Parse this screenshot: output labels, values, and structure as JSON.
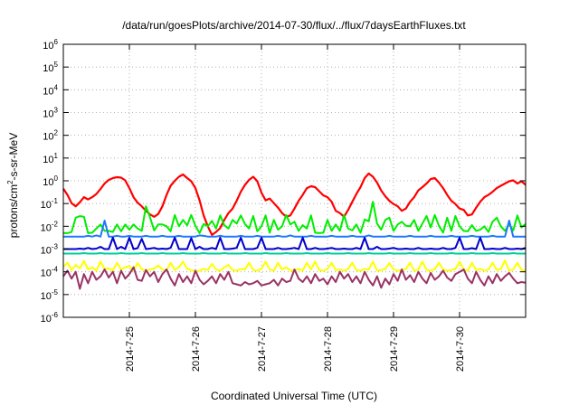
{
  "chart_data": {
    "type": "line",
    "title": "/data/run/goesPlots/archive/2014-07-30/flux/../flux/7daysEarthFluxes.txt",
    "xlabel": "Coordinated Universal Time (UTC)",
    "ylabel_main": "protons/cm",
    "ylabel_sup": "2",
    "ylabel_rest": "-s-sr-MeV",
    "y_scale": "log",
    "ylim": [
      1e-06,
      1000000.0
    ],
    "y_ticks": [
      {
        "base": "10",
        "exp": "-6",
        "v": -6
      },
      {
        "base": "10",
        "exp": "-5",
        "v": -5
      },
      {
        "base": "10",
        "exp": "-4",
        "v": -4
      },
      {
        "base": "10",
        "exp": "-3",
        "v": -3
      },
      {
        "base": "10",
        "exp": "-2",
        "v": -2
      },
      {
        "base": "10",
        "exp": "-1",
        "v": -1
      },
      {
        "base": "10",
        "exp": "0",
        "v": 0
      },
      {
        "base": "10",
        "exp": "1",
        "v": 1
      },
      {
        "base": "10",
        "exp": "2",
        "v": 2
      },
      {
        "base": "10",
        "exp": "3",
        "v": 3
      },
      {
        "base": "10",
        "exp": "4",
        "v": 4
      },
      {
        "base": "10",
        "exp": "5",
        "v": 5
      },
      {
        "base": "10",
        "exp": "6",
        "v": 6
      }
    ],
    "xlim_days": [
      0,
      7
    ],
    "x_ticks": [
      {
        "label": "2014-7-25",
        "d": 1
      },
      {
        "label": "2014-7-26",
        "d": 2
      },
      {
        "label": "2014-7-27",
        "d": 3
      },
      {
        "label": "2014-7-28",
        "d": 4
      },
      {
        "label": "2014-7-29",
        "d": 5
      },
      {
        "label": "2014-7-30",
        "d": 6
      }
    ],
    "grid": true,
    "series": [
      {
        "color": "#ff0000",
        "pattern": "smooth",
        "values": [
          -0.35,
          -0.62,
          -0.98,
          -1.12,
          -0.94,
          -0.72,
          -0.82,
          -0.72,
          -0.58,
          -0.36,
          -0.12,
          0.04,
          0.12,
          0.16,
          0.14,
          0.02,
          -0.32,
          -0.72,
          -0.96,
          -1.12,
          -1.32,
          -1.48,
          -1.58,
          -1.46,
          -1.12,
          -0.62,
          -0.22,
          0.0,
          0.18,
          0.28,
          0.12,
          -0.02,
          -0.32,
          -0.86,
          -1.52,
          -2.0,
          -2.38,
          -2.25,
          -2.08,
          -1.72,
          -1.42,
          -1.22,
          -0.88,
          -0.48,
          -0.18,
          0.04,
          0.18,
          -0.02,
          -0.52,
          -0.86,
          -0.78,
          -0.98,
          -1.18,
          -1.42,
          -1.58,
          -1.52,
          -1.22,
          -0.88,
          -0.62,
          -0.32,
          -0.24,
          -0.28,
          -0.46,
          -0.64,
          -0.72,
          -0.92,
          -1.32,
          -1.42,
          -1.58,
          -1.28,
          -0.92,
          -0.58,
          -0.28,
          0.12,
          0.32,
          0.18,
          -0.08,
          -0.42,
          -0.68,
          -0.88,
          -1.02,
          -1.12,
          -1.32,
          -1.22,
          -0.92,
          -0.72,
          -0.42,
          -0.28,
          -0.12,
          0.08,
          0.12,
          -0.08,
          -0.32,
          -0.62,
          -0.88,
          -1.02,
          -1.22,
          -1.28,
          -1.52,
          -1.48,
          -1.18,
          -0.92,
          -0.72,
          -0.62,
          -0.48,
          -0.32,
          -0.22,
          -0.12,
          -0.02,
          0.02,
          -0.12,
          -0.02,
          -0.18
        ]
      },
      {
        "color": "#00ee00",
        "pattern": "spiky",
        "values": [
          -2.3,
          -2.3,
          -2.25,
          -1.62,
          -1.55,
          -1.58,
          -2.3,
          -2.28,
          -2.1,
          -1.92,
          -2.2,
          -2.2,
          -2.25,
          -1.92,
          -2.22,
          -1.92,
          -2.15,
          -1.92,
          -2.1,
          -2.2,
          -1.12,
          -1.6,
          -2.18,
          -1.92,
          -1.92,
          -2.0,
          -2.22,
          -1.5,
          -2.0,
          -1.72,
          -1.96,
          -1.5,
          -1.98,
          -2.3,
          -1.9,
          -2.0,
          -1.76,
          -2.1,
          -1.52,
          -1.95,
          -2.1,
          -1.72,
          -1.88,
          -1.52,
          -1.9,
          -2.1,
          -1.55,
          -2.22,
          -2.0,
          -1.52,
          -2.28,
          -1.72,
          -2.15,
          -2.0,
          -1.5,
          -1.92,
          -1.8,
          -2.2,
          -1.95,
          -2.1,
          -1.52,
          -2.28,
          -2.3,
          -2.28,
          -1.72,
          -2.2,
          -1.92,
          -2.2,
          -1.5,
          -2.1,
          -2.18,
          -1.92,
          -2.28,
          -1.7,
          -1.78,
          -0.92,
          -1.88,
          -2.15,
          -1.72,
          -1.62,
          -2.2,
          -1.92,
          -1.8,
          -1.98,
          -2.0,
          -1.72,
          -2.2,
          -1.88,
          -1.55,
          -2.05,
          -1.5,
          -1.98,
          -2.28,
          -1.62,
          -2.2,
          -1.55,
          -2.0,
          -2.2,
          -2.22,
          -1.95,
          -2.2,
          -2.15,
          -2.0,
          -2.25,
          -1.8,
          -1.62,
          -2.0,
          -2.2,
          -1.9,
          -2.18,
          -1.52,
          -2.05,
          -1.9
        ]
      },
      {
        "color": "#1e78ff",
        "pattern": "flat",
        "values": [
          -2.45,
          -2.45,
          -2.45,
          -2.45,
          -2.45,
          -2.45,
          -2.42,
          -2.45,
          -2.4,
          -2.45,
          -1.75,
          -2.45,
          -2.45,
          -2.42,
          -2.45,
          -2.45,
          -2.42,
          -2.45,
          -2.45,
          -2.45,
          -2.42,
          -2.45,
          -2.45,
          -2.45,
          -2.42,
          -2.45,
          -2.45,
          -2.45,
          -2.42,
          -2.45,
          -2.45,
          -2.45,
          -2.45,
          -2.4,
          -2.42,
          -2.45,
          -2.45,
          -2.45,
          -2.42,
          -2.45,
          -2.45,
          -2.45,
          -2.45,
          -2.42,
          -2.45,
          -2.45,
          -2.45,
          -2.42,
          -2.45,
          -2.45,
          -2.45,
          -2.45,
          -2.42,
          -2.45,
          -2.45,
          -2.4,
          -2.45,
          -2.45,
          -2.45,
          -2.45,
          -2.42,
          -2.45,
          -2.45,
          -2.45,
          -2.45,
          -2.42,
          -2.45,
          -2.45,
          -2.45,
          -2.45,
          -2.42,
          -2.45,
          -2.45,
          -2.45,
          -2.4,
          -2.45,
          -2.45,
          -2.45,
          -2.45,
          -2.42,
          -2.45,
          -2.45,
          -2.45,
          -2.45,
          -2.42,
          -2.45,
          -2.45,
          -2.45,
          -2.45,
          -2.42,
          -2.45,
          -2.45,
          -2.45,
          -2.45,
          -2.42,
          -2.45,
          -2.45,
          -2.45,
          -2.45,
          -2.42,
          -2.45,
          -2.45,
          -2.45,
          -2.45,
          -2.42,
          -2.45,
          -2.45,
          -2.45,
          -1.75,
          -2.45,
          -2.45,
          -2.45,
          -2.45
        ]
      },
      {
        "color": "#0000cc",
        "pattern": "spiky",
        "values": [
          -3.0,
          -3.0,
          -3.0,
          -3.0,
          -2.98,
          -3.0,
          -2.95,
          -3.0,
          -2.98,
          -2.9,
          -3.0,
          -3.0,
          -2.5,
          -3.0,
          -2.9,
          -3.0,
          -2.5,
          -3.0,
          -2.96,
          -2.55,
          -3.0,
          -2.98,
          -2.95,
          -3.0,
          -2.98,
          -3.0,
          -2.95,
          -2.5,
          -3.0,
          -3.0,
          -3.0,
          -2.52,
          -3.0,
          -2.9,
          -3.0,
          -3.0,
          -2.95,
          -3.0,
          -2.5,
          -3.0,
          -3.0,
          -2.98,
          -2.95,
          -2.5,
          -3.0,
          -3.0,
          -3.0,
          -2.95,
          -2.5,
          -3.0,
          -3.0,
          -3.0,
          -2.95,
          -3.0,
          -3.0,
          -2.98,
          -2.95,
          -3.0,
          -2.5,
          -3.0,
          -3.0,
          -2.95,
          -3.0,
          -3.0,
          -2.98,
          -2.95,
          -3.0,
          -3.0,
          -2.98,
          -3.0,
          -3.0,
          -2.95,
          -3.0,
          -2.5,
          -3.0,
          -3.0,
          -2.9,
          -3.0,
          -3.0,
          -2.98,
          -2.95,
          -3.0,
          -3.0,
          -2.98,
          -3.0,
          -3.0,
          -2.95,
          -3.0,
          -3.0,
          -2.98,
          -3.0,
          -3.0,
          -2.95,
          -3.0,
          -3.0,
          -2.95,
          -2.5,
          -3.0,
          -3.0,
          -2.96,
          -3.0,
          -2.5,
          -3.0,
          -3.0,
          -2.98,
          -3.0,
          -3.0,
          -2.95,
          -3.0,
          -3.0,
          -2.98,
          -3.0,
          -2.95
        ]
      },
      {
        "color": "#00cc99",
        "pattern": "flat",
        "values": [
          -3.2,
          -3.2,
          -3.2,
          -3.2,
          -3.2,
          -3.18,
          -3.2,
          -3.2,
          -3.2,
          -3.18,
          -3.2,
          -3.2,
          -3.2,
          -3.2,
          -3.18,
          -3.2,
          -3.2,
          -3.2,
          -3.2,
          -3.18,
          -3.2,
          -3.2,
          -3.2,
          -3.2,
          -3.18,
          -3.2,
          -3.2,
          -3.2,
          -3.2,
          -3.18,
          -3.2,
          -3.2,
          -3.2,
          -3.2,
          -3.18,
          -3.2,
          -3.2,
          -3.2,
          -3.2,
          -3.18,
          -3.2,
          -3.2,
          -3.2,
          -3.2,
          -3.18,
          -3.2,
          -3.2,
          -3.2,
          -3.2,
          -3.18,
          -3.2,
          -3.2,
          -3.2,
          -3.2,
          -3.18,
          -3.2,
          -3.2,
          -3.2,
          -3.2,
          -3.18,
          -3.2,
          -3.2,
          -3.2,
          -3.2,
          -3.18,
          -3.2,
          -3.2,
          -3.2,
          -3.2,
          -3.18,
          -3.2,
          -3.2,
          -3.2,
          -3.2,
          -3.18,
          -3.2,
          -3.2,
          -3.2,
          -3.2,
          -3.18,
          -3.2,
          -3.2,
          -3.2,
          -3.2,
          -3.18,
          -3.2,
          -3.2,
          -3.2,
          -3.2,
          -3.18,
          -3.2,
          -3.2,
          -3.2,
          -3.2,
          -3.18,
          -3.2,
          -3.2,
          -3.2,
          -3.2,
          -3.18,
          -3.2,
          -3.2,
          -3.2,
          -3.2,
          -3.18,
          -3.2,
          -3.2,
          -3.2,
          -3.2,
          -3.18,
          -3.2,
          -3.2,
          -3.2
        ]
      },
      {
        "color": "#ffff00",
        "pattern": "spiky",
        "values": [
          -3.78,
          -3.6,
          -3.92,
          -3.7,
          -3.85,
          -3.52,
          -3.9,
          -3.8,
          -3.95,
          -3.55,
          -3.88,
          -3.85,
          -3.95,
          -3.6,
          -3.9,
          -3.8,
          -3.75,
          -3.95,
          -3.62,
          -3.88,
          -3.95,
          -3.9,
          -3.85,
          -3.72,
          -3.9,
          -3.95,
          -3.6,
          -3.92,
          -3.8,
          -3.55,
          -3.88,
          -3.92,
          -3.98,
          -3.95,
          -3.88,
          -3.92,
          -3.65,
          -3.9,
          -3.95,
          -3.8,
          -3.7,
          -3.92,
          -3.95,
          -3.88,
          -3.9,
          -3.6,
          -3.92,
          -3.95,
          -3.88,
          -3.55,
          -3.9,
          -3.95,
          -3.6,
          -3.9,
          -3.8,
          -3.95,
          -3.92,
          -3.88,
          -3.95,
          -3.6,
          -3.9,
          -3.55,
          -3.92,
          -3.95,
          -3.88,
          -3.6,
          -3.92,
          -3.9,
          -3.95,
          -3.88,
          -3.6,
          -3.92,
          -3.95,
          -3.88,
          -3.9,
          -3.55,
          -3.95,
          -3.92,
          -3.88,
          -3.62,
          -3.9,
          -3.95,
          -3.92,
          -3.88,
          -3.6,
          -3.95,
          -3.9,
          -3.55,
          -3.92,
          -3.95,
          -3.88,
          -3.6,
          -3.9,
          -3.95,
          -3.92,
          -3.88,
          -3.55,
          -3.9,
          -3.95,
          -3.6,
          -3.92,
          -3.88,
          -3.95,
          -3.9,
          -3.6,
          -3.92,
          -3.88,
          -3.5,
          -3.95,
          -3.9,
          -3.6,
          -3.92,
          -3.95
        ]
      },
      {
        "color": "#993366",
        "pattern": "spiky",
        "values": [
          -4.2,
          -3.95,
          -4.3,
          -4.0,
          -4.75,
          -4.1,
          -4.5,
          -4.0,
          -4.35,
          -4.2,
          -3.9,
          -4.25,
          -4.0,
          -4.5,
          -3.95,
          -4.3,
          -4.1,
          -3.8,
          -4.35,
          -4.4,
          -3.92,
          -4.2,
          -4.0,
          -4.45,
          -4.1,
          -3.9,
          -4.3,
          -4.6,
          -4.1,
          -4.45,
          -4.2,
          -4.5,
          -3.95,
          -4.35,
          -4.55,
          -4.4,
          -4.2,
          -4.5,
          -4.1,
          -4.35,
          -4.0,
          -4.5,
          -4.55,
          -4.6,
          -4.45,
          -4.55,
          -4.5,
          -4.4,
          -4.6,
          -4.55,
          -4.5,
          -4.35,
          -4.6,
          -4.3,
          -4.45,
          -4.4,
          -3.9,
          -4.3,
          -4.45,
          -4.2,
          -4.5,
          -4.1,
          -4.4,
          -4.3,
          -4.55,
          -4.2,
          -4.45,
          -4.0,
          -4.3,
          -4.1,
          -4.45,
          -4.2,
          -4.5,
          -4.0,
          -4.35,
          -4.6,
          -4.2,
          -4.7,
          -4.3,
          -4.55,
          -4.1,
          -4.4,
          -3.9,
          -4.35,
          -4.15,
          -4.45,
          -4.0,
          -4.3,
          -4.5,
          -4.05,
          -4.35,
          -4.2,
          -3.95,
          -4.25,
          -4.4,
          -4.1,
          -4.0,
          -3.9,
          -4.3,
          -4.5,
          -4.0,
          -4.35,
          -4.6,
          -4.2,
          -4.5,
          -4.1,
          -4.4,
          -4.2,
          -4.05,
          -4.3,
          -4.5,
          -4.45,
          -4.48
        ]
      }
    ]
  }
}
